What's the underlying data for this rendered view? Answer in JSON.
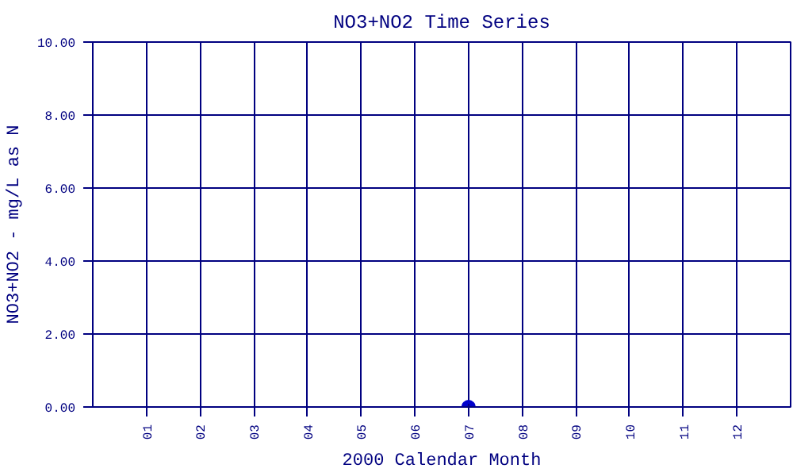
{
  "chart_data": {
    "type": "scatter",
    "title": "NO3+NO2 Time Series",
    "xlabel": "2000 Calendar Month",
    "ylabel": "NO3+NO2 - mg/L as N",
    "categories": [
      "01",
      "02",
      "03",
      "04",
      "05",
      "06",
      "07",
      "08",
      "09",
      "10",
      "11",
      "12"
    ],
    "series": [
      {
        "color": "#0000cc",
        "values": [
          null,
          null,
          null,
          null,
          null,
          null,
          0,
          null,
          null,
          null,
          null,
          null
        ]
      }
    ],
    "ylim": [
      0,
      10
    ],
    "yticks": [
      {
        "value": 0,
        "label": "0.00"
      },
      {
        "value": 2,
        "label": "2.00"
      },
      {
        "value": 4,
        "label": "4.00"
      },
      {
        "value": 6,
        "label": "6.00"
      },
      {
        "value": 8,
        "label": "8.00"
      },
      {
        "value": 10,
        "label": "10.00"
      }
    ],
    "grid": true,
    "marker": "circle"
  }
}
